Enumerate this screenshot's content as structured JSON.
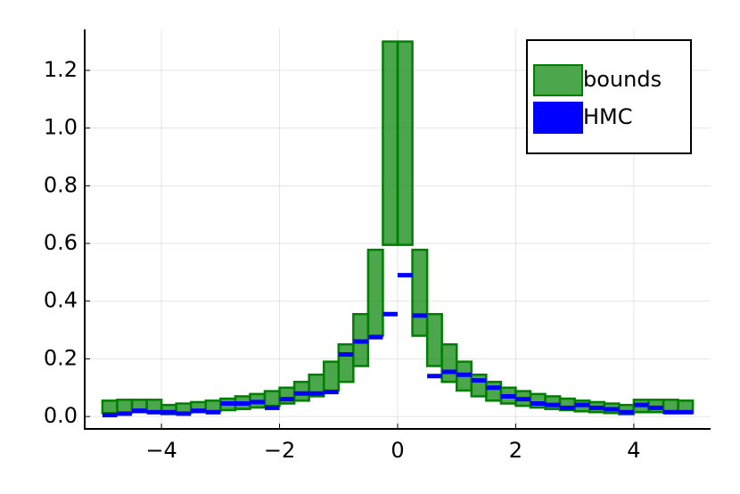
{
  "chart_data": {
    "type": "histogram",
    "bins": [
      -5,
      -4.75,
      -4.5,
      -4.25,
      -4,
      -3.75,
      -3.5,
      -3.25,
      -3,
      -2.75,
      -2.5,
      -2.25,
      -2,
      -1.75,
      -1.5,
      -1.25,
      -1,
      -0.75,
      -0.5,
      -0.25,
      0,
      0.25,
      0.5,
      0.75,
      1,
      1.25,
      1.5,
      1.75,
      2,
      2.25,
      2.5,
      2.75,
      3,
      3.25,
      3.5,
      3.75,
      4,
      4.25,
      4.5,
      4.75,
      5
    ],
    "series": [
      {
        "name": "bounds",
        "color": "#008000",
        "lower": [
          0.012,
          0.013,
          0.015,
          0.015,
          0.008,
          0.012,
          0.015,
          0.018,
          0.022,
          0.026,
          0.031,
          0.037,
          0.045,
          0.055,
          0.07,
          0.09,
          0.12,
          0.175,
          0.28,
          0.595,
          0.595,
          0.28,
          0.175,
          0.12,
          0.09,
          0.07,
          0.055,
          0.045,
          0.037,
          0.031,
          0.026,
          0.022,
          0.018,
          0.015,
          0.012,
          0.008,
          0.015,
          0.015,
          0.013,
          0.012
        ],
        "upper": [
          0.055,
          0.058,
          0.058,
          0.058,
          0.04,
          0.045,
          0.05,
          0.055,
          0.062,
          0.07,
          0.078,
          0.088,
          0.1,
          0.12,
          0.145,
          0.19,
          0.25,
          0.355,
          0.578,
          1.3,
          1.3,
          0.578,
          0.355,
          0.25,
          0.19,
          0.145,
          0.12,
          0.1,
          0.088,
          0.078,
          0.07,
          0.062,
          0.055,
          0.05,
          0.045,
          0.04,
          0.058,
          0.058,
          0.058,
          0.055
        ]
      },
      {
        "name": "HMC",
        "color": "#0000ff",
        "values": [
          0.005,
          0.01,
          0.02,
          0.015,
          0.015,
          0.01,
          0.02,
          0.015,
          0.045,
          0.045,
          0.05,
          0.03,
          0.06,
          0.08,
          0.08,
          0.085,
          0.215,
          0.26,
          0.275,
          0.355,
          0.49,
          0.35,
          0.14,
          0.155,
          0.145,
          0.125,
          0.1,
          0.07,
          0.06,
          0.045,
          0.04,
          0.03,
          0.04,
          0.03,
          0.025,
          0.015,
          0.04,
          0.03,
          0.015,
          0.015
        ]
      }
    ],
    "xlim": [
      -5.3,
      5.3
    ],
    "ylim": [
      -0.043,
      1.342
    ],
    "xticks": [
      {
        "value": -4,
        "label": "−4"
      },
      {
        "value": -2,
        "label": "−2"
      },
      0,
      2,
      4
    ],
    "yticks": [
      {
        "value": 0,
        "label": "0.0"
      },
      0.2,
      0.4,
      0.6,
      0.8,
      {
        "value": 1,
        "label": "1.0"
      },
      1.2
    ],
    "grid": true,
    "legend": "upper right"
  }
}
